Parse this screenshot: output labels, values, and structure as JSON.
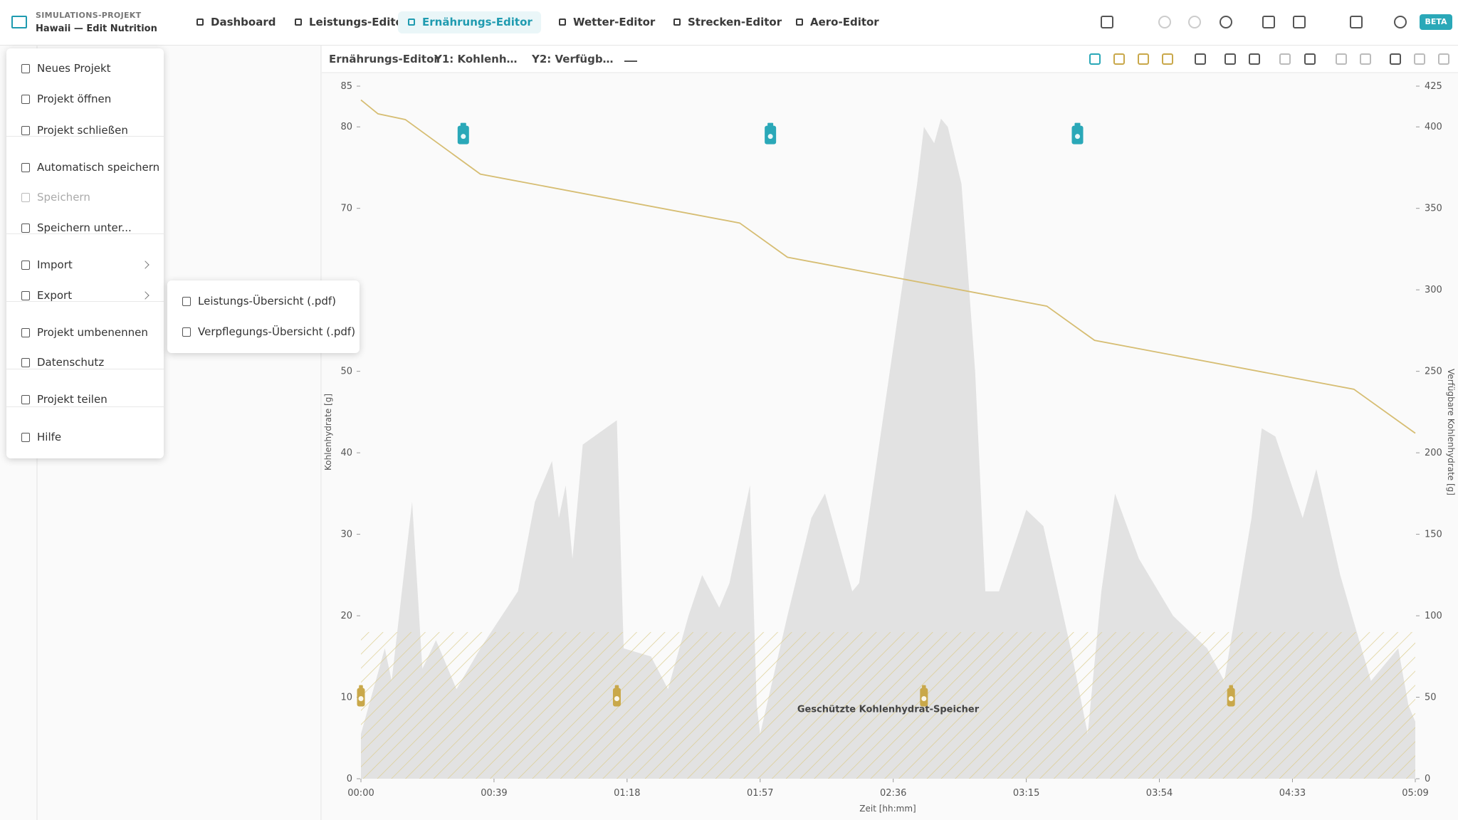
{
  "header": {
    "project_label": "SIMULATIONS-PROJEKT",
    "project_name": "Hawaii — Edit Nutrition",
    "tabs": [
      "Dashboard",
      "Leistungs-Editor",
      "Ernährungs-Editor",
      "Wetter-Editor",
      "Strecken-Editor",
      "Aero-Editor"
    ],
    "badge": "BETA"
  },
  "menu": {
    "items": [
      "Neues Projekt",
      "Projekt öffnen",
      "Projekt schließen",
      "Automatisch speichern",
      "Speichern",
      "Speichern unter...",
      "Import",
      "Export",
      "Projekt umbenennen",
      "Datenschutz",
      "Projekt teilen",
      "Hilfe"
    ]
  },
  "submenu": {
    "items": [
      "Leistungs-Übersicht (.pdf)",
      "Verpflegungs-Übersicht (.pdf)"
    ]
  },
  "toolbar": {
    "view": "Ernährungs-Editor",
    "y1_select": "Y1: Kohlenh…",
    "y2_select": "Y2: Verfügb…"
  },
  "chart_data": {
    "type": "area",
    "xlabel": "Zeit [hh:mm]",
    "ylabel": "Kohlenhydrate [g]",
    "y2label": "Verfügbare Kohlenhydrate [g]",
    "xlim": [
      0,
      309
    ],
    "xticks": [
      {
        "value": 0,
        "label": "00:00"
      },
      {
        "value": 39,
        "label": "00:39"
      },
      {
        "value": 78,
        "label": "01:18"
      },
      {
        "value": 117,
        "label": "01:57"
      },
      {
        "value": 156,
        "label": "02:36"
      },
      {
        "value": 195,
        "label": "03:15"
      },
      {
        "value": 234,
        "label": "03:54"
      },
      {
        "value": 273,
        "label": "04:33"
      },
      {
        "value": 309,
        "label": "05:09"
      }
    ],
    "ylim": [
      0,
      85
    ],
    "yticks": [
      0,
      10,
      20,
      30,
      40,
      50,
      70,
      80,
      85
    ],
    "y2lim": [
      0,
      425
    ],
    "y2ticks": [
      0,
      50,
      100,
      150,
      200,
      250,
      300,
      350,
      400,
      425
    ],
    "series": [
      {
        "type": "area",
        "color": "#e2e2e2",
        "axis": "y",
        "x": [
          0,
          7,
          9,
          15,
          18,
          22,
          28,
          35,
          46,
          51,
          56,
          58,
          60,
          62,
          65,
          75,
          77,
          85,
          90,
          96,
          100,
          105,
          108,
          114,
          116,
          117,
          125,
          132,
          136,
          144,
          146,
          155,
          163,
          165,
          168,
          170,
          172,
          176,
          180,
          183,
          187,
          195,
          200,
          208,
          213,
          217,
          221,
          228,
          238,
          248,
          253,
          261,
          264,
          268,
          276,
          280,
          287,
          296,
          304,
          307,
          309
        ],
        "values": [
          5.5,
          16,
          12,
          34,
          13.5,
          17,
          11,
          16,
          23,
          34,
          39,
          32,
          36,
          27,
          41,
          44,
          16,
          15,
          11,
          20,
          25,
          21,
          24,
          36,
          9,
          5.5,
          20,
          32,
          35,
          23,
          24,
          50,
          73,
          80,
          78,
          81,
          80,
          73,
          50,
          23,
          23,
          33,
          31,
          16,
          5.5,
          23,
          35,
          27,
          20,
          16,
          12,
          32,
          43,
          42,
          32,
          38,
          25,
          12,
          16,
          9,
          7
        ]
      },
      {
        "type": "line",
        "color": "#d6bd72",
        "axis": "y2",
        "x": [
          0,
          5,
          13,
          35,
          111,
          125,
          201,
          215,
          291,
          309
        ],
        "values": [
          416.5,
          408,
          404.5,
          371,
          341,
          320,
          290,
          269,
          239,
          212
        ]
      }
    ],
    "protected_zone": {
      "text": "Geschützte Kohlenhydrat-Speicher",
      "value": 18,
      "color": "#d9c98c"
    },
    "drink_events": {
      "color": "#2aa8b8",
      "x": [
        30,
        120,
        210
      ],
      "y": [
        79,
        79,
        79
      ]
    },
    "gel_events": {
      "color": "#c9a84a",
      "x": [
        0,
        75,
        165,
        255
      ],
      "y": [
        10,
        10,
        10,
        10
      ]
    }
  }
}
